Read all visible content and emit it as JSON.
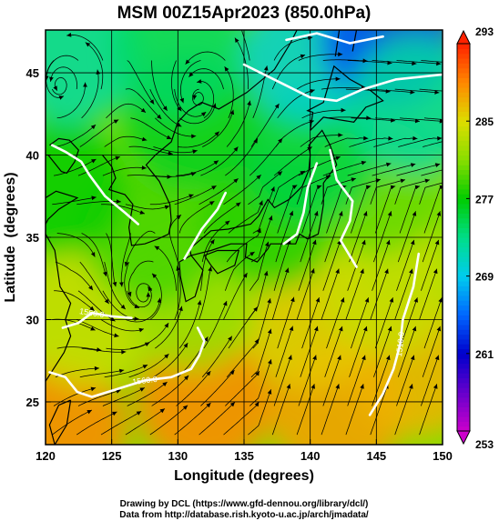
{
  "chart_data": {
    "type": "heatmap",
    "title": "MSM 00Z15Apr2023 (850.0hPa)",
    "xlabel": "Longitude (degrees)",
    "ylabel": "Latitude  (degrees)",
    "xlim": [
      120,
      150
    ],
    "ylim": [
      22.4,
      47.6
    ],
    "x_ticks": [
      120,
      125,
      130,
      135,
      140,
      145,
      150
    ],
    "y_ticks": [
      25,
      30,
      35,
      40,
      45
    ],
    "grid": true,
    "colorbar": {
      "min": 253,
      "max": 293,
      "tick_values": [
        253,
        261,
        269,
        277,
        285,
        293
      ],
      "colors": [
        {
          "value": 253,
          "color": "#cc00cc"
        },
        {
          "value": 257,
          "color": "#6600cc"
        },
        {
          "value": 261,
          "color": "#0000cc"
        },
        {
          "value": 265,
          "color": "#0066ff"
        },
        {
          "value": 269,
          "color": "#00ccee"
        },
        {
          "value": 273,
          "color": "#00dd88"
        },
        {
          "value": 277,
          "color": "#00cc00"
        },
        {
          "value": 281,
          "color": "#88dd00"
        },
        {
          "value": 285,
          "color": "#dddd00"
        },
        {
          "value": 289,
          "color": "#ff8800"
        },
        {
          "value": 293,
          "color": "#ff2200"
        }
      ]
    },
    "temperature_field": [
      {
        "lon": 121,
        "lat": 23.5,
        "value": 289
      },
      {
        "lon": 132,
        "lat": 25.0,
        "value": 289
      },
      {
        "lon": 142,
        "lat": 24.5,
        "value": 288
      },
      {
        "lon": 148,
        "lat": 27.0,
        "value": 287
      },
      {
        "lon": 140,
        "lat": 30.0,
        "value": 286
      },
      {
        "lon": 146,
        "lat": 32.0,
        "value": 284
      },
      {
        "lon": 123,
        "lat": 30.0,
        "value": 284
      },
      {
        "lon": 131,
        "lat": 31.0,
        "value": 282
      },
      {
        "lon": 128,
        "lat": 35.0,
        "value": 279
      },
      {
        "lon": 137,
        "lat": 36.0,
        "value": 278
      },
      {
        "lon": 145,
        "lat": 38.0,
        "value": 280
      },
      {
        "lon": 121,
        "lat": 38.0,
        "value": 277
      },
      {
        "lon": 140,
        "lat": 40.0,
        "value": 275
      },
      {
        "lon": 131,
        "lat": 42.0,
        "value": 276
      },
      {
        "lon": 122,
        "lat": 46.0,
        "value": 272
      },
      {
        "lon": 130,
        "lat": 46.5,
        "value": 274
      },
      {
        "lon": 140,
        "lat": 46.0,
        "value": 270
      },
      {
        "lon": 146,
        "lat": 47.0,
        "value": 264
      },
      {
        "lon": 148,
        "lat": 43.0,
        "value": 272
      }
    ],
    "contours": [
      {
        "label": "1560.0",
        "points": [
          [
            120.3,
            26.8
          ],
          [
            121.5,
            26.5
          ],
          [
            122.4,
            25.6
          ],
          [
            123.5,
            25.3
          ],
          [
            125.5,
            25.8
          ],
          [
            127.5,
            26.3
          ],
          [
            129.5,
            26.5
          ],
          [
            131.0,
            27.0
          ],
          [
            131.6,
            27.8
          ],
          [
            132.0,
            28.7
          ],
          [
            131.5,
            29.5
          ]
        ]
      },
      {
        "label": "1560.0",
        "points": [
          [
            121.3,
            29.5
          ],
          [
            122.5,
            29.8
          ],
          [
            123.5,
            30.4
          ],
          [
            125.0,
            30.2
          ],
          [
            126.5,
            30.1
          ]
        ]
      },
      {
        "label": "1510.0",
        "points": [
          [
            144.5,
            24.2
          ],
          [
            145.5,
            25.5
          ],
          [
            146.3,
            27.0
          ],
          [
            146.8,
            28.5
          ],
          [
            147.0,
            30.0
          ],
          [
            147.8,
            32.0
          ],
          [
            148.2,
            34.0
          ]
        ]
      },
      {
        "label": "",
        "points": [
          [
            135.0,
            45.5
          ],
          [
            137.5,
            44.5
          ],
          [
            140.0,
            43.5
          ],
          [
            142.0,
            43.3
          ],
          [
            144.0,
            44.0
          ],
          [
            146.5,
            44.6
          ],
          [
            150.0,
            44.9
          ]
        ]
      },
      {
        "label": "",
        "points": [
          [
            140.5,
            39.5
          ],
          [
            139.8,
            38.0
          ],
          [
            139.5,
            36.5
          ],
          [
            139.0,
            35.2
          ],
          [
            138.0,
            34.6
          ]
        ]
      },
      {
        "label": "",
        "points": [
          [
            120.5,
            40.6
          ],
          [
            121.5,
            40.2
          ],
          [
            122.7,
            39.6
          ],
          [
            123.3,
            38.8
          ],
          [
            124.5,
            37.5
          ],
          [
            126.0,
            36.5
          ],
          [
            127.0,
            35.8
          ]
        ]
      },
      {
        "label": "",
        "points": [
          [
            130.5,
            33.7
          ],
          [
            131.8,
            35.5
          ],
          [
            133.0,
            36.7
          ],
          [
            133.6,
            37.7
          ]
        ]
      },
      {
        "label": "",
        "points": [
          [
            141.5,
            40.3
          ],
          [
            142.0,
            38.5
          ],
          [
            143.2,
            37.2
          ],
          [
            143.0,
            36.0
          ],
          [
            142.3,
            34.8
          ],
          [
            143.5,
            33.2
          ]
        ]
      },
      {
        "label": "",
        "points": [
          [
            138.2,
            47.0
          ],
          [
            140.5,
            47.4
          ],
          [
            143.0,
            46.8
          ],
          [
            145.5,
            47.2
          ]
        ]
      }
    ],
    "streamline_centers": [
      {
        "lon": 121.0,
        "lat": 44.0
      },
      {
        "lon": 131.5,
        "lat": 43.2
      },
      {
        "lon": 127.5,
        "lat": 31.2
      }
    ],
    "credits": [
      "Drawing by DCL (https://www.gfd-dennou.org/library/dcl/)",
      "Data from http://database.rish.kyoto-u.ac.jp/arch/jmadata/"
    ]
  }
}
